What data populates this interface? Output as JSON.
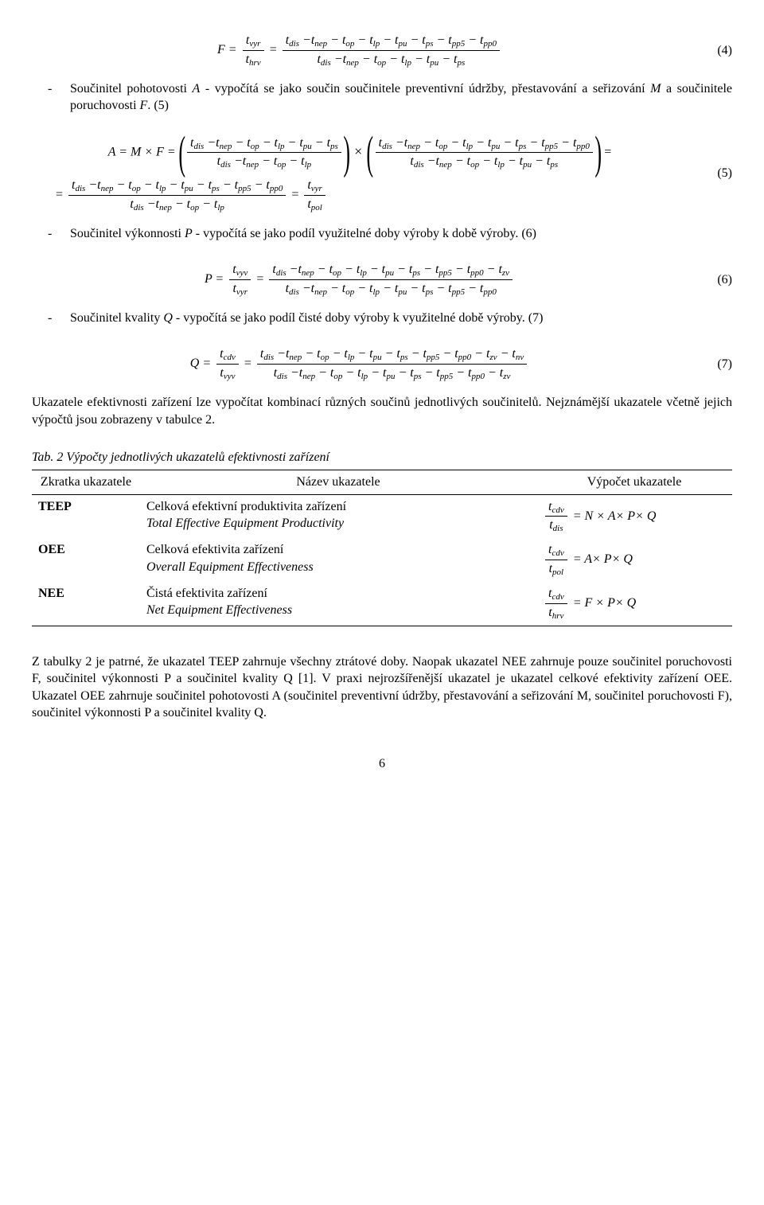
{
  "eq4": {
    "lead": "F =",
    "f1_num": "t",
    "f1_num_sub": "vyr",
    "f1_den": "t",
    "f1_den_sub": "hrv",
    "mid": "=",
    "f2_num": "t_dis −t_nep − t_op − t_lp − t_pu − t_ps − t_pp5 − t_pp0",
    "f2_den": "t_dis −t_nep − t_op − t_lp − t_pu − t_ps",
    "num": "(4)"
  },
  "b1_pre": "Součinitel pohotovosti ",
  "b1_A": "A",
  "b1_mid": " - vypočítá se jako součin součinitele preventivní údržby, přestavování a seřizování ",
  "b1_M": "M",
  "b1_mid2": " a součinitele poruchovosti ",
  "b1_F": "F",
  "b1_end": ". (5)",
  "eq5": {
    "lead": "A = M × F =",
    "p1_num": "t_dis −t_nep − t_op − t_lp − t_pu − t_ps",
    "p1_den": "t_dis −t_nep − t_op − t_lp",
    "times": "×",
    "p2_num": "t_dis −t_nep − t_op − t_lp − t_pu − t_ps − t_pp5 − t_pp0",
    "p2_den": "t_dis −t_nep − t_op − t_lp − t_pu − t_ps",
    "tail": "=",
    "l2_lead": "=",
    "l2_f1_num": "t_dis −t_nep − t_op − t_lp − t_pu − t_ps − t_pp5 − t_pp0",
    "l2_f1_den": "t_dis −t_nep − t_op − t_lp",
    "l2_mid": "=",
    "l2_f2_num": "t",
    "l2_f2_num_sub": "vyr",
    "l2_f2_den": "t",
    "l2_f2_den_sub": "pol",
    "num": "(5)"
  },
  "b2_pre": "Součinitel výkonnosti ",
  "b2_P": "P",
  "b2_end": " - vypočítá se jako podíl využitelné doby výroby k době výroby. (6)",
  "eq6": {
    "lead": "P =",
    "f1_num": "t",
    "f1_num_sub": "vyv",
    "f1_den": "t",
    "f1_den_sub": "vyr",
    "mid": "=",
    "f2_num": "t_dis −t_nep − t_op − t_lp − t_pu − t_ps − t_pp5 − t_pp0 − t_zv",
    "f2_den": "t_dis −t_nep − t_op − t_lp − t_pu − t_ps − t_pp5 − t_pp0",
    "num": "(6)"
  },
  "b3_pre": "Součinitel kvality ",
  "b3_Q": "Q",
  "b3_end": " - vypočítá se jako podíl čisté doby výroby k využitelné době výroby. (7)",
  "eq7": {
    "lead": "Q =",
    "f1_num": "t",
    "f1_num_sub": "cdv",
    "f1_den": "t",
    "f1_den_sub": "vyv",
    "mid": "=",
    "f2_num": "t_dis −t_nep − t_op − t_lp − t_pu − t_ps − t_pp5 − t_pp0 − t_zv − t_nv",
    "f2_den": "t_dis −t_nep − t_op − t_lp − t_pu − t_ps − t_pp5 − t_pp0 − t_zv",
    "num": "(7)"
  },
  "para2": "Ukazatele efektivnosti zařízení lze vypočítat kombinací různých součinů jednotlivých součinitelů. Nejznámější ukazatele včetně jejich výpočtů jsou zobrazeny v tabulce 2.",
  "tabcap": "Tab. 2 Výpočty jednotlivých ukazatelů efektivnosti zařízení",
  "tbl": {
    "h1": "Zkratka ukazatele",
    "h2": "Název ukazatele",
    "h3": "Výpočet ukazatele",
    "r1c1": "TEEP",
    "r1c2a": "Celková efektivní produktivita zařízení",
    "r1c2b": "Total Effective Equipment Productivity",
    "r1_f_num": "t",
    "r1_f_num_sub": "cdv",
    "r1_f_den": "t",
    "r1_f_den_sub": "dis",
    "r1_rhs": " = N × A× P× Q",
    "r2c1": "OEE",
    "r2c2a": "Celková efektivita zařízení",
    "r2c2b": "Overall Equipment Effectiveness",
    "r2_f_num": "t",
    "r2_f_num_sub": "cdv",
    "r2_f_den": "t",
    "r2_f_den_sub": "pol",
    "r2_rhs": " = A× P× Q",
    "r3c1": "NEE",
    "r3c2a": "Čistá efektivita zařízení",
    "r3c2b": "Net Equipment Effectiveness",
    "r3_f_num": "t",
    "r3_f_num_sub": "cdv",
    "r3_f_den": "t",
    "r3_f_den_sub": "hrv",
    "r3_rhs": " = F × P× Q"
  },
  "para3": "Z tabulky 2 je patrné, že ukazatel TEEP zahrnuje všechny ztrátové doby. Naopak ukazatel NEE zahrnuje pouze součinitel poruchovosti F, součinitel výkonnosti P a součinitel kvality Q [1]. V praxi nejrozšířenější ukazatel je ukazatel celkové efektivity zařízení OEE. Ukazatel OEE zahrnuje součinitel pohotovosti A (součinitel preventivní údržby, přestavování a seřizování M, součinitel poruchovosti F), součinitel výkonnosti P a součinitel kvality Q.",
  "pagenum": "6"
}
